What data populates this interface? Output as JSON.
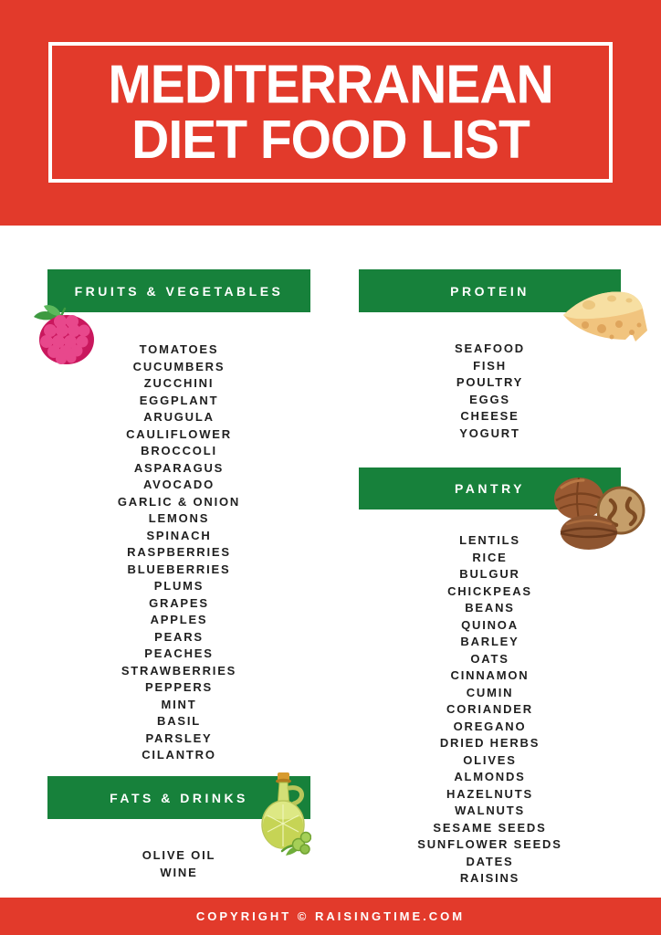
{
  "theme": {
    "red": "#e23a2b",
    "green": "#17813b",
    "ink": "#1f1f1f",
    "white": "#ffffff",
    "raspberry_pink": "#d6246e",
    "cheese_tan": "#f2c983",
    "walnut_brown": "#9a5a32",
    "olive_green": "#c6d455"
  },
  "header": {
    "title_line1": "MEDITERRANEAN",
    "title_line2": "DIET FOOD LIST"
  },
  "sections": [
    {
      "id": "fruits-vegetables",
      "label": "FRUITS & VEGETABLES",
      "icon": "raspberry-icon",
      "items": [
        "TOMATOES",
        "CUCUMBERS",
        "ZUCCHINI",
        "EGGPLANT",
        "ARUGULA",
        "CAULIFLOWER",
        "BROCCOLI",
        "ASPARAGUS",
        "AVOCADO",
        "GARLIC & ONION",
        "LEMONS",
        "SPINACH",
        "RASPBERRIES",
        "BLUEBERRIES",
        "PLUMS",
        "GRAPES",
        "APPLES",
        "PEARS",
        "PEACHES",
        "STRAWBERRIES",
        "PEPPERS",
        "MINT",
        "BASIL",
        "PARSLEY",
        "CILANTRO"
      ]
    },
    {
      "id": "protein",
      "label": "PROTEIN",
      "icon": "cheese-icon",
      "items": [
        "SEAFOOD",
        "FISH",
        "POULTRY",
        "EGGS",
        "CHEESE",
        "YOGURT"
      ]
    },
    {
      "id": "pantry",
      "label": "PANTRY",
      "icon": "walnut-icon",
      "items": [
        "LENTILS",
        "RICE",
        "BULGUR",
        "CHICKPEAS",
        "BEANS",
        "QUINOA",
        "BARLEY",
        "OATS",
        "CINNAMON",
        "CUMIN",
        "CORIANDER",
        "OREGANO",
        "DRIED HERBS",
        "OLIVES",
        "ALMONDS",
        "HAZELNUTS",
        "WALNUTS",
        "SESAME SEEDS",
        "SUNFLOWER SEEDS",
        "DATES",
        "RAISINS"
      ]
    },
    {
      "id": "fats-drinks",
      "label": "FATS & DRINKS",
      "icon": "olive-oil-icon",
      "items": [
        "OLIVE OIL",
        "WINE"
      ]
    }
  ],
  "footer": {
    "text": "COPYRIGHT © RAISINGTIME.COM"
  }
}
